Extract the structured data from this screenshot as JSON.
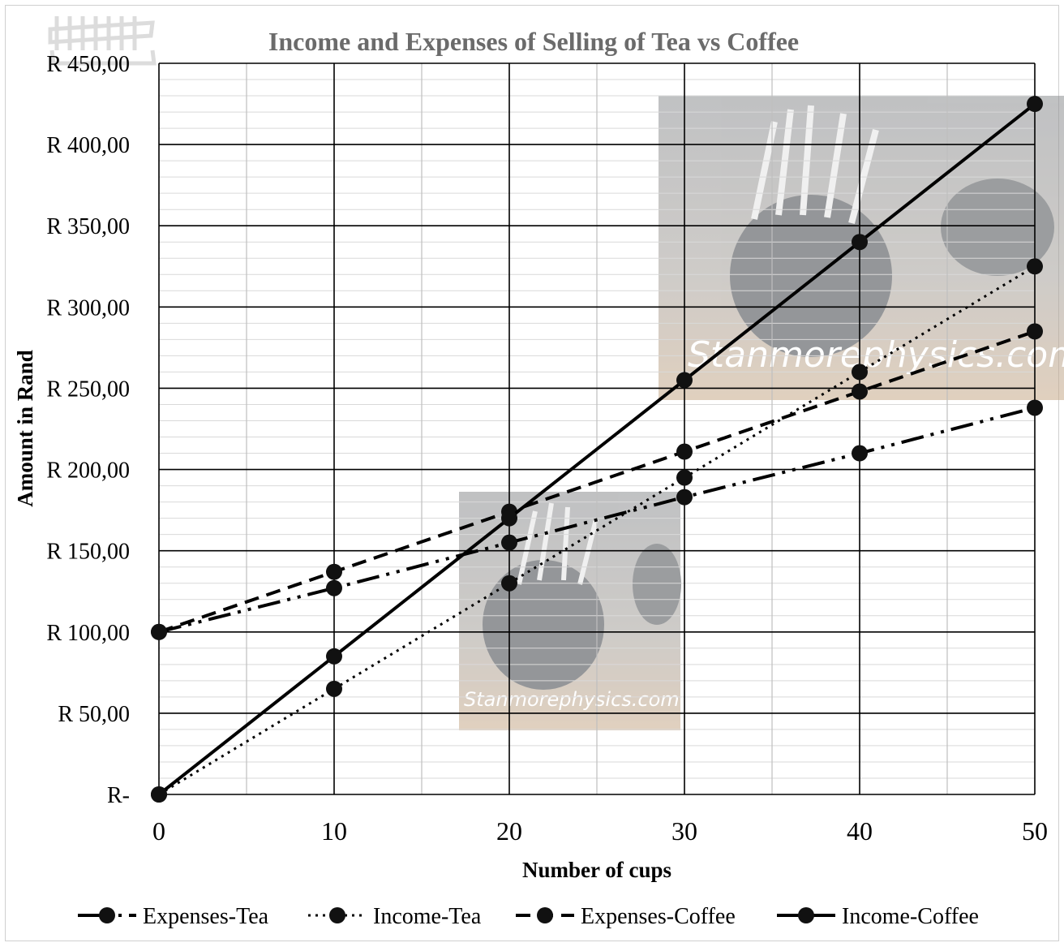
{
  "chart_data": {
    "type": "line",
    "title": "Income and Expenses of Selling of Tea vs Coffee",
    "xlabel": "Number of cups",
    "ylabel": "Amount in Rand",
    "x": [
      0,
      10,
      20,
      30,
      40,
      50
    ],
    "xlim": [
      0,
      50
    ],
    "ylim": [
      0,
      450
    ],
    "x_ticks": [
      "0",
      "10",
      "20",
      "30",
      "40",
      "50"
    ],
    "y_ticks": [
      "R-",
      "R 50,00",
      "R 100,00",
      "R 150,00",
      "R 200,00",
      "R 250,00",
      "R 300,00",
      "R 350,00",
      "R 400,00",
      "R 450,00"
    ],
    "grid": true,
    "legend_position": "bottom",
    "series": [
      {
        "name": "Expenses-Tea",
        "values": [
          100,
          127,
          155,
          183,
          210,
          238
        ],
        "dash": "dash-dot-dot",
        "color": "#000000"
      },
      {
        "name": "Income-Tea",
        "values": [
          0,
          65,
          130,
          195,
          260,
          325
        ],
        "dash": "dotted",
        "color": "#000000"
      },
      {
        "name": "Expenses-Coffee",
        "values": [
          100,
          137,
          174,
          211,
          248,
          285
        ],
        "dash": "dashed",
        "color": "#000000"
      },
      {
        "name": "Income-Coffee",
        "values": [
          0,
          85,
          170,
          255,
          340,
          425
        ],
        "dash": "solid",
        "color": "#000000"
      }
    ]
  },
  "watermark": {
    "text": "Stanmorephysics.com"
  }
}
